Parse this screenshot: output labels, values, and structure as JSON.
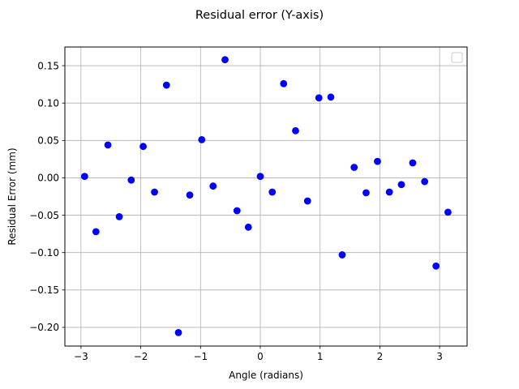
{
  "chart_data": {
    "type": "scatter",
    "title": "Residual error (Y-axis)",
    "xlabel": "Angle (radians)",
    "ylabel": "Residual Error (mm)",
    "xlim": [
      -3.27,
      3.46
    ],
    "ylim": [
      -0.225,
      0.175
    ],
    "xticks": [
      -3,
      -2,
      -1,
      0,
      1,
      2,
      3
    ],
    "xtick_labels": [
      "−3",
      "−2",
      "−1",
      "0",
      "1",
      "2",
      "3"
    ],
    "yticks": [
      -0.2,
      -0.15,
      -0.1,
      -0.05,
      0.0,
      0.05,
      0.1,
      0.15
    ],
    "ytick_labels": [
      "−0.20",
      "−0.15",
      "−0.10",
      "−0.05",
      "0.00",
      "0.05",
      "0.10",
      "0.15"
    ],
    "grid": true,
    "legend": {
      "placement": "top-right",
      "entries": []
    },
    "colors": {
      "marker": "#0000ff",
      "grid": "#b0b0b0",
      "axes": "#000000"
    },
    "series": [
      {
        "x": [
          -2.94,
          -2.75,
          -2.55,
          -2.36,
          -2.16,
          -1.96,
          -1.77,
          -1.57,
          -1.37,
          -1.18,
          -0.98,
          -0.79,
          -0.59,
          -0.39,
          -0.2,
          0.0,
          0.2,
          0.39,
          0.59,
          0.79,
          0.98,
          1.18,
          1.37,
          1.57,
          1.77,
          1.96,
          2.16,
          2.36,
          2.55,
          2.75,
          2.94,
          3.14
        ],
        "y": [
          0.002,
          -0.072,
          0.044,
          -0.052,
          -0.003,
          0.042,
          -0.019,
          0.124,
          -0.207,
          -0.023,
          0.051,
          -0.011,
          0.158,
          -0.044,
          -0.066,
          0.002,
          -0.019,
          0.126,
          0.063,
          -0.031,
          0.107,
          0.108,
          -0.103,
          0.014,
          -0.02,
          0.022,
          -0.019,
          -0.009,
          0.02,
          -0.005,
          -0.118,
          -0.046
        ]
      }
    ]
  }
}
